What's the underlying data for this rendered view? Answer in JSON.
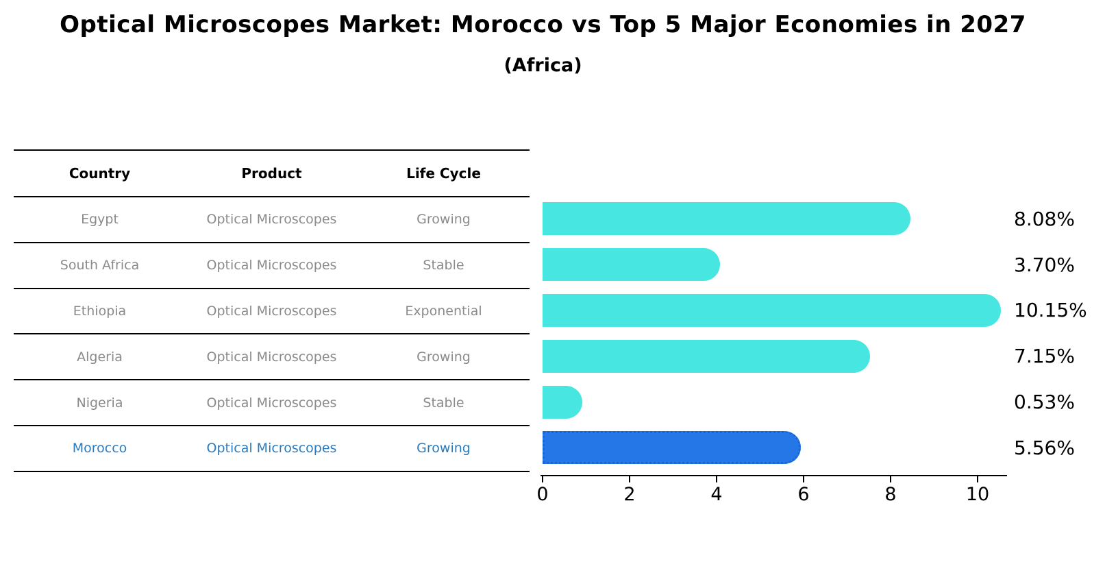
{
  "title": "Optical Microscopes Market: Morocco vs Top 5 Major Economies in 2027",
  "subtitle": "(Africa)",
  "table": {
    "columns": [
      "Country",
      "Product",
      "Life Cycle"
    ],
    "rows": [
      {
        "country": "Egypt",
        "product": "Optical Microscopes",
        "life_cycle": "Growing",
        "highlight": false
      },
      {
        "country": "South Africa",
        "product": "Optical Microscopes",
        "life_cycle": "Stable",
        "highlight": false
      },
      {
        "country": "Ethiopia",
        "product": "Optical Microscopes",
        "life_cycle": "Exponential",
        "highlight": false
      },
      {
        "country": "Algeria",
        "product": "Optical Microscopes",
        "life_cycle": "Growing",
        "highlight": false
      },
      {
        "country": "Nigeria",
        "product": "Optical Microscopes",
        "life_cycle": "Stable",
        "highlight": false
      },
      {
        "country": "Morocco",
        "product": "Optical Microscopes",
        "life_cycle": "Growing",
        "highlight": true
      }
    ]
  },
  "chart_data": {
    "type": "bar",
    "orientation": "horizontal",
    "title": "Optical Microscopes Market: Morocco vs Top 5 Major Economies in 2027",
    "subtitle": "(Africa)",
    "categories": [
      "Egypt",
      "South Africa",
      "Ethiopia",
      "Algeria",
      "Nigeria",
      "Morocco"
    ],
    "values": [
      8.08,
      3.7,
      10.15,
      7.15,
      0.53,
      5.56
    ],
    "value_labels": [
      "8.08%",
      "3.70%",
      "10.15%",
      "7.15%",
      "0.53%",
      "5.56%"
    ],
    "x_ticks": [
      0,
      2,
      4,
      6,
      8,
      10
    ],
    "xlim": [
      0,
      10.7
    ],
    "grid": false,
    "legend": false,
    "highlight_category": "Morocco",
    "colors": {
      "bar": "#47e6e0",
      "highlight_bar": "#2577e8",
      "highlight_border": "#1866d6",
      "highlight_text": "#2b7bbe",
      "gray_text": "#8a8a8a",
      "axis": "#000000"
    }
  }
}
